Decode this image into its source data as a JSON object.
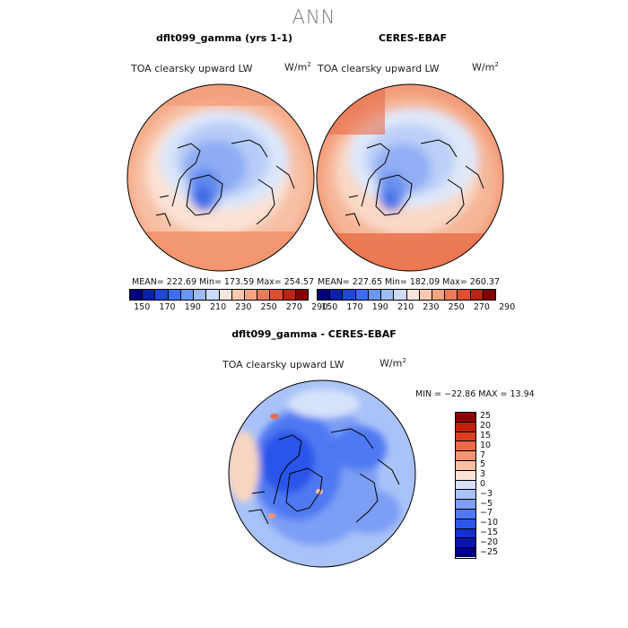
{
  "suptitle": "ANN",
  "panels": [
    {
      "id": "model",
      "title": "dflt099_gamma (yrs 1-1)",
      "variable": "TOA clearsky upward LW",
      "units": "W/m²",
      "stats": "MEAN= 222.69   Min= 173.59   Max= 254.57"
    },
    {
      "id": "obs",
      "title": "CERES-EBAF",
      "variable": "TOA clearsky upward LW",
      "units": "W/m²",
      "stats": "MEAN= 227.65   Min= 182.09   Max= 260.37"
    }
  ],
  "diff": {
    "title": "dflt099_gamma - CERES-EBAF",
    "variable": "TOA clearsky upward LW",
    "units": "W/m²",
    "stats": "MIN = −22.86  MAX =  13.94"
  },
  "colors": {
    "abs_scale": [
      "#00007f",
      "#0b1fa8",
      "#1f48d6",
      "#3c6ef0",
      "#6a96f5",
      "#9cbbf7",
      "#cbdbf9",
      "#f8e6dd",
      "#f9c9b1",
      "#f5a482",
      "#ef7b58",
      "#e04e30",
      "#bb2412",
      "#850000"
    ],
    "diff_scale": [
      "#00007f",
      "#0a14a6",
      "#1430cf",
      "#2c55ea",
      "#4f79f2",
      "#7c9ef5",
      "#a9c2f8",
      "#d6e2fa",
      "#fbe4d6",
      "#f8c0a3",
      "#f39474",
      "#ec6a48",
      "#dd4021",
      "#c0200b",
      "#8b0000"
    ]
  },
  "chart_data": [
    {
      "type": "heatmap",
      "title": "dflt099_gamma (yrs 1-1)",
      "subtitle": "TOA clearsky upward LW",
      "units": "W/m²",
      "projection": "north polar stereographic",
      "contour_levels": [
        150,
        160,
        170,
        180,
        190,
        200,
        210,
        220,
        230,
        240,
        250,
        260,
        270,
        280,
        290
      ],
      "colorbar_tick_labels": [
        150,
        170,
        190,
        210,
        230,
        250,
        270,
        290
      ],
      "mean": 222.69,
      "min": 173.59,
      "max": 254.57
    },
    {
      "type": "heatmap",
      "title": "CERES-EBAF",
      "subtitle": "TOA clearsky upward LW",
      "units": "W/m²",
      "projection": "north polar stereographic",
      "contour_levels": [
        150,
        160,
        170,
        180,
        190,
        200,
        210,
        220,
        230,
        240,
        250,
        260,
        270,
        280,
        290
      ],
      "colorbar_tick_labels": [
        150,
        170,
        190,
        210,
        230,
        250,
        270,
        290
      ],
      "mean": 227.65,
      "min": 182.09,
      "max": 260.37
    },
    {
      "type": "heatmap",
      "title": "dflt099_gamma - CERES-EBAF",
      "subtitle": "TOA clearsky upward LW",
      "units": "W/m²",
      "projection": "north polar stereographic",
      "colorbar_tick_labels": [
        25,
        20,
        15,
        10,
        7,
        5,
        3,
        0,
        -3,
        -5,
        -7,
        -10,
        -15,
        -20,
        -25
      ],
      "min": -22.86,
      "max": 13.94
    }
  ],
  "abs_ticks": [
    "150",
    "170",
    "190",
    "210",
    "230",
    "250",
    "270",
    "290"
  ],
  "diff_ticks": [
    "25",
    "20",
    "15",
    "10",
    "7",
    "5",
    "3",
    "0",
    "−3",
    "−5",
    "−7",
    "−10",
    "−15",
    "−20",
    "−25"
  ]
}
